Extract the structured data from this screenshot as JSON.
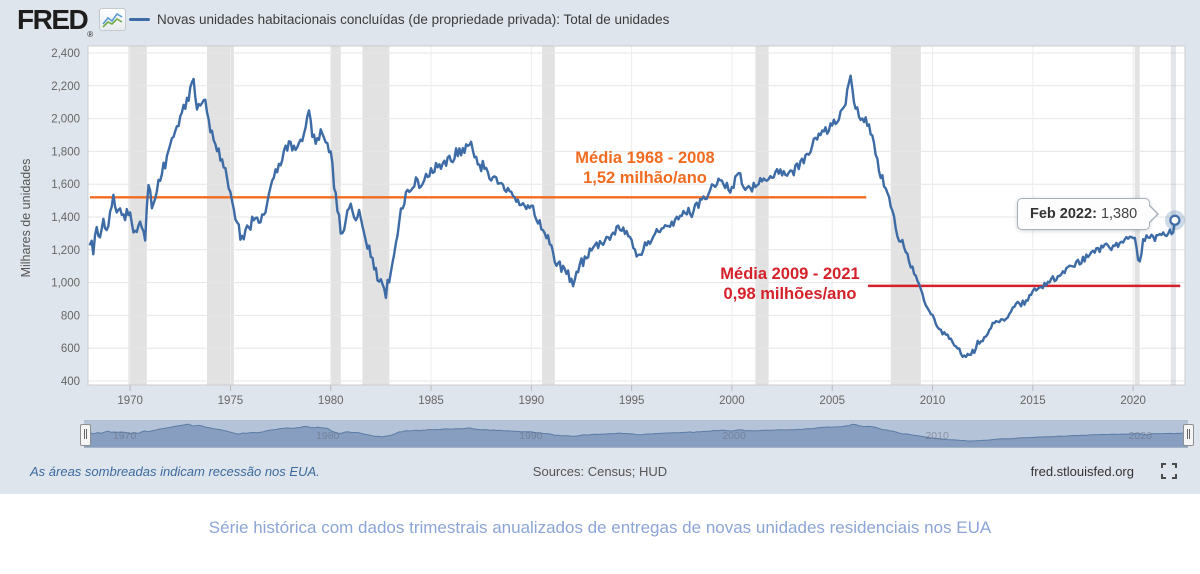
{
  "header": {
    "logo": "FRED",
    "registered": "®",
    "legend_label": "Novas unidades habitacionais concluídas (de propriedade privada): Total de unidades"
  },
  "colors": {
    "background": "#dfe5ec",
    "plot_background": "#ffffff",
    "series": "#3d6ba5",
    "grid_h": "#e6e6e6",
    "grid_v": "#ececec",
    "recession_band": "#e2e2e2",
    "mean1": "#f16c20",
    "mean2": "#d4212a",
    "axis_text": "#666666",
    "caption_text": "#8ba5d6"
  },
  "chart_data": {
    "type": "line",
    "title": "Novas unidades habitacionais concluídas (de propriedade privada): Total de unidades",
    "ylabel": "Milhares de unidades",
    "xlabel": "",
    "x_range": [
      1968.0,
      2022.6
    ],
    "ylim": [
      400,
      2400
    ],
    "grid": "on",
    "legend_position": "top",
    "y_ticks": [
      400,
      600,
      800,
      1000,
      1200,
      1400,
      1600,
      1800,
      2000,
      2200,
      2400
    ],
    "y_tick_labels": [
      "400",
      "600",
      "800",
      "1,000",
      "1,200",
      "1,400",
      "1,600",
      "1,800",
      "2,000",
      "2,200",
      "2,400"
    ],
    "x_ticks": [
      1970,
      1975,
      1980,
      1985,
      1990,
      1995,
      2000,
      2005,
      2010,
      2015,
      2020
    ],
    "x_tick_labels": [
      "1970",
      "1975",
      "1980",
      "1985",
      "1990",
      "1995",
      "2000",
      "2005",
      "2010",
      "2015",
      "2020"
    ],
    "unit": "thousands of units, annual rate, monthly points read from plot",
    "last_point": {
      "label": "Feb 2022",
      "x": 2022.083,
      "value": 1380
    },
    "mean_lines": [
      {
        "label1": "Média 1968 - 2008",
        "label2": "1,52 milhão/ano",
        "value": 1520,
        "draw_from": 1968.0,
        "draw_to": 2006.7,
        "color": "#f16c20"
      },
      {
        "label1": "Média 2009 - 2021",
        "label2": "0,98 milhões/ano",
        "value": 980,
        "draw_from": 2006.78,
        "draw_to": 2022.35,
        "color": "#d4212a"
      }
    ],
    "recessions": [
      [
        1969.92,
        1970.83
      ],
      [
        1973.83,
        1975.17
      ],
      [
        1980.0,
        1980.5
      ],
      [
        1981.58,
        1982.92
      ],
      [
        1990.54,
        1991.17
      ],
      [
        2001.17,
        2001.83
      ],
      [
        2007.92,
        2009.42
      ],
      [
        2020.08,
        2020.33
      ]
    ],
    "series_anchors": [
      [
        1968.0,
        1250
      ],
      [
        1968.17,
        1190
      ],
      [
        1968.33,
        1340
      ],
      [
        1968.5,
        1270
      ],
      [
        1968.67,
        1390
      ],
      [
        1968.83,
        1310
      ],
      [
        1969.0,
        1420
      ],
      [
        1969.17,
        1540
      ],
      [
        1969.33,
        1430
      ],
      [
        1969.5,
        1470
      ],
      [
        1969.67,
        1380
      ],
      [
        1969.83,
        1440
      ],
      [
        1970.0,
        1410
      ],
      [
        1970.25,
        1295
      ],
      [
        1970.5,
        1350
      ],
      [
        1970.75,
        1290
      ],
      [
        1970.92,
        1580
      ],
      [
        1971.1,
        1460
      ],
      [
        1971.3,
        1560
      ],
      [
        1971.5,
        1650
      ],
      [
        1971.75,
        1730
      ],
      [
        1972.0,
        1870
      ],
      [
        1972.25,
        1950
      ],
      [
        1972.5,
        2010
      ],
      [
        1972.75,
        2090
      ],
      [
        1973.0,
        2160
      ],
      [
        1973.15,
        2280
      ],
      [
        1973.3,
        2090
      ],
      [
        1973.5,
        2050
      ],
      [
        1973.65,
        2130
      ],
      [
        1973.85,
        2040
      ],
      [
        1974.0,
        1950
      ],
      [
        1974.25,
        1850
      ],
      [
        1974.5,
        1780
      ],
      [
        1974.75,
        1690
      ],
      [
        1975.0,
        1560
      ],
      [
        1975.25,
        1370
      ],
      [
        1975.5,
        1295
      ],
      [
        1975.67,
        1260
      ],
      [
        1975.85,
        1370
      ],
      [
        1976.0,
        1355
      ],
      [
        1976.25,
        1400
      ],
      [
        1976.5,
        1375
      ],
      [
        1976.75,
        1460
      ],
      [
        1977.0,
        1570
      ],
      [
        1977.25,
        1660
      ],
      [
        1977.5,
        1740
      ],
      [
        1977.75,
        1810
      ],
      [
        1978.0,
        1850
      ],
      [
        1978.25,
        1800
      ],
      [
        1978.5,
        1870
      ],
      [
        1978.75,
        1950
      ],
      [
        1978.92,
        2020
      ],
      [
        1979.1,
        1900
      ],
      [
        1979.3,
        1870
      ],
      [
        1979.5,
        1900
      ],
      [
        1979.75,
        1840
      ],
      [
        1980.0,
        1780
      ],
      [
        1980.25,
        1520
      ],
      [
        1980.5,
        1330
      ],
      [
        1980.62,
        1255
      ],
      [
        1980.8,
        1420
      ],
      [
        1981.0,
        1490
      ],
      [
        1981.2,
        1380
      ],
      [
        1981.4,
        1450
      ],
      [
        1981.6,
        1330
      ],
      [
        1981.8,
        1250
      ],
      [
        1982.0,
        1160
      ],
      [
        1982.25,
        1060
      ],
      [
        1982.5,
        1000
      ],
      [
        1982.75,
        940
      ],
      [
        1983.0,
        1070
      ],
      [
        1983.25,
        1230
      ],
      [
        1983.5,
        1430
      ],
      [
        1983.75,
        1540
      ],
      [
        1984.0,
        1560
      ],
      [
        1984.25,
        1630
      ],
      [
        1984.5,
        1590
      ],
      [
        1984.75,
        1660
      ],
      [
        1985.0,
        1670
      ],
      [
        1985.25,
        1700
      ],
      [
        1985.5,
        1690
      ],
      [
        1985.75,
        1730
      ],
      [
        1986.0,
        1750
      ],
      [
        1986.25,
        1790
      ],
      [
        1986.5,
        1800
      ],
      [
        1986.75,
        1820
      ],
      [
        1987.0,
        1870
      ],
      [
        1987.2,
        1760
      ],
      [
        1987.4,
        1690
      ],
      [
        1987.6,
        1720
      ],
      [
        1987.8,
        1680
      ],
      [
        1988.0,
        1650
      ],
      [
        1988.3,
        1610
      ],
      [
        1988.6,
        1590
      ],
      [
        1989.0,
        1550
      ],
      [
        1989.3,
        1490
      ],
      [
        1989.6,
        1460
      ],
      [
        1990.0,
        1470
      ],
      [
        1990.3,
        1390
      ],
      [
        1990.6,
        1330
      ],
      [
        1990.9,
        1240
      ],
      [
        1991.2,
        1130
      ],
      [
        1991.5,
        1090
      ],
      [
        1991.8,
        1050
      ],
      [
        1992.1,
        995
      ],
      [
        1992.4,
        1110
      ],
      [
        1992.7,
        1140
      ],
      [
        1993.0,
        1200
      ],
      [
        1993.4,
        1230
      ],
      [
        1993.8,
        1260
      ],
      [
        1994.0,
        1290
      ],
      [
        1994.3,
        1335
      ],
      [
        1994.6,
        1320
      ],
      [
        1995.0,
        1245
      ],
      [
        1995.3,
        1155
      ],
      [
        1995.6,
        1210
      ],
      [
        1996.0,
        1280
      ],
      [
        1996.4,
        1335
      ],
      [
        1996.8,
        1340
      ],
      [
        1997.2,
        1360
      ],
      [
        1997.6,
        1450
      ],
      [
        1998.0,
        1425
      ],
      [
        1998.4,
        1485
      ],
      [
        1998.8,
        1525
      ],
      [
        1999.2,
        1620
      ],
      [
        1999.6,
        1600
      ],
      [
        2000.0,
        1560
      ],
      [
        2000.3,
        1690
      ],
      [
        2000.6,
        1560
      ],
      [
        2001.0,
        1570
      ],
      [
        2001.3,
        1610
      ],
      [
        2001.6,
        1630
      ],
      [
        2002.0,
        1650
      ],
      [
        2002.4,
        1680
      ],
      [
        2002.8,
        1670
      ],
      [
        2003.2,
        1690
      ],
      [
        2003.6,
        1760
      ],
      [
        2004.0,
        1840
      ],
      [
        2004.4,
        1900
      ],
      [
        2004.8,
        1940
      ],
      [
        2005.2,
        1990
      ],
      [
        2005.6,
        2070
      ],
      [
        2005.9,
        2250
      ],
      [
        2006.1,
        2090
      ],
      [
        2006.4,
        2020
      ],
      [
        2006.8,
        1960
      ],
      [
        2007.0,
        1890
      ],
      [
        2007.3,
        1720
      ],
      [
        2007.6,
        1580
      ],
      [
        2008.0,
        1440
      ],
      [
        2008.3,
        1270
      ],
      [
        2008.6,
        1230
      ],
      [
        2008.8,
        1140
      ],
      [
        2009.0,
        1090
      ],
      [
        2009.3,
        990
      ],
      [
        2009.6,
        880
      ],
      [
        2010.0,
        790
      ],
      [
        2010.4,
        710
      ],
      [
        2010.8,
        670
      ],
      [
        2011.2,
        600
      ],
      [
        2011.6,
        555
      ],
      [
        2011.9,
        545
      ],
      [
        2012.2,
        620
      ],
      [
        2012.6,
        675
      ],
      [
        2013.0,
        740
      ],
      [
        2013.4,
        765
      ],
      [
        2013.8,
        805
      ],
      [
        2014.2,
        860
      ],
      [
        2014.6,
        885
      ],
      [
        2015.0,
        940
      ],
      [
        2015.4,
        970
      ],
      [
        2015.8,
        1005
      ],
      [
        2016.2,
        1035
      ],
      [
        2016.6,
        1065
      ],
      [
        2017.0,
        1105
      ],
      [
        2017.4,
        1130
      ],
      [
        2017.8,
        1165
      ],
      [
        2018.2,
        1195
      ],
      [
        2018.6,
        1225
      ],
      [
        2019.0,
        1215
      ],
      [
        2019.4,
        1250
      ],
      [
        2019.8,
        1275
      ],
      [
        2020.1,
        1280
      ],
      [
        2020.3,
        1105
      ],
      [
        2020.5,
        1255
      ],
      [
        2020.8,
        1285
      ],
      [
        2021.1,
        1265
      ],
      [
        2021.4,
        1310
      ],
      [
        2021.7,
        1290
      ],
      [
        2022.0,
        1325
      ],
      [
        2022.083,
        1380
      ]
    ]
  },
  "tooltip": {
    "label": "Feb 2022:",
    "value": "1,380"
  },
  "navigator": {
    "year_labels": [
      "1970",
      "1980",
      "1990",
      "2000",
      "2010",
      "2020"
    ],
    "years": [
      1970,
      1980,
      1990,
      2000,
      2010,
      2020
    ]
  },
  "footer": {
    "note": "As áreas sombreadas indicam recessão nos EUA.",
    "sources": "Sources: Census; HUD",
    "site": "fred.stlouisfed.org"
  },
  "caption": "Série histórica com dados trimestrais anualizados de entregas de novas unidades residenciais nos EUA"
}
